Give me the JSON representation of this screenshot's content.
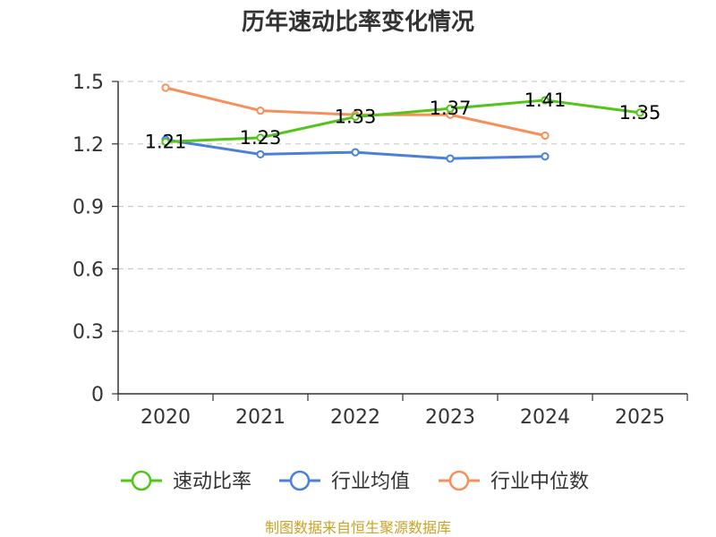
{
  "chart_data": {
    "type": "line",
    "title": "历年速动比率变化情况",
    "categories": [
      "2020",
      "2021",
      "2022",
      "2023",
      "2024",
      "2025"
    ],
    "ylim": [
      0,
      1.5
    ],
    "yticks": [
      "0",
      "0.3",
      "0.6",
      "0.9",
      "1.2",
      "1.5"
    ],
    "grid": true,
    "legend_position": "bottom",
    "series": [
      {
        "name": "速动比率",
        "color": "#52c41a",
        "values": [
          1.21,
          1.23,
          1.33,
          1.37,
          1.41,
          1.35
        ],
        "labels": [
          "1.21",
          "1.23",
          "1.33",
          "1.37",
          "1.41",
          "1.35"
        ]
      },
      {
        "name": "行业均值",
        "color": "#4a7fdc",
        "values": [
          1.22,
          1.15,
          1.16,
          1.13,
          1.14,
          null
        ]
      },
      {
        "name": "行业中位数",
        "color": "#f5905a",
        "values": [
          1.47,
          1.36,
          1.34,
          1.34,
          1.24,
          null
        ]
      }
    ],
    "source": "制图数据来自恒生聚源数据库"
  }
}
